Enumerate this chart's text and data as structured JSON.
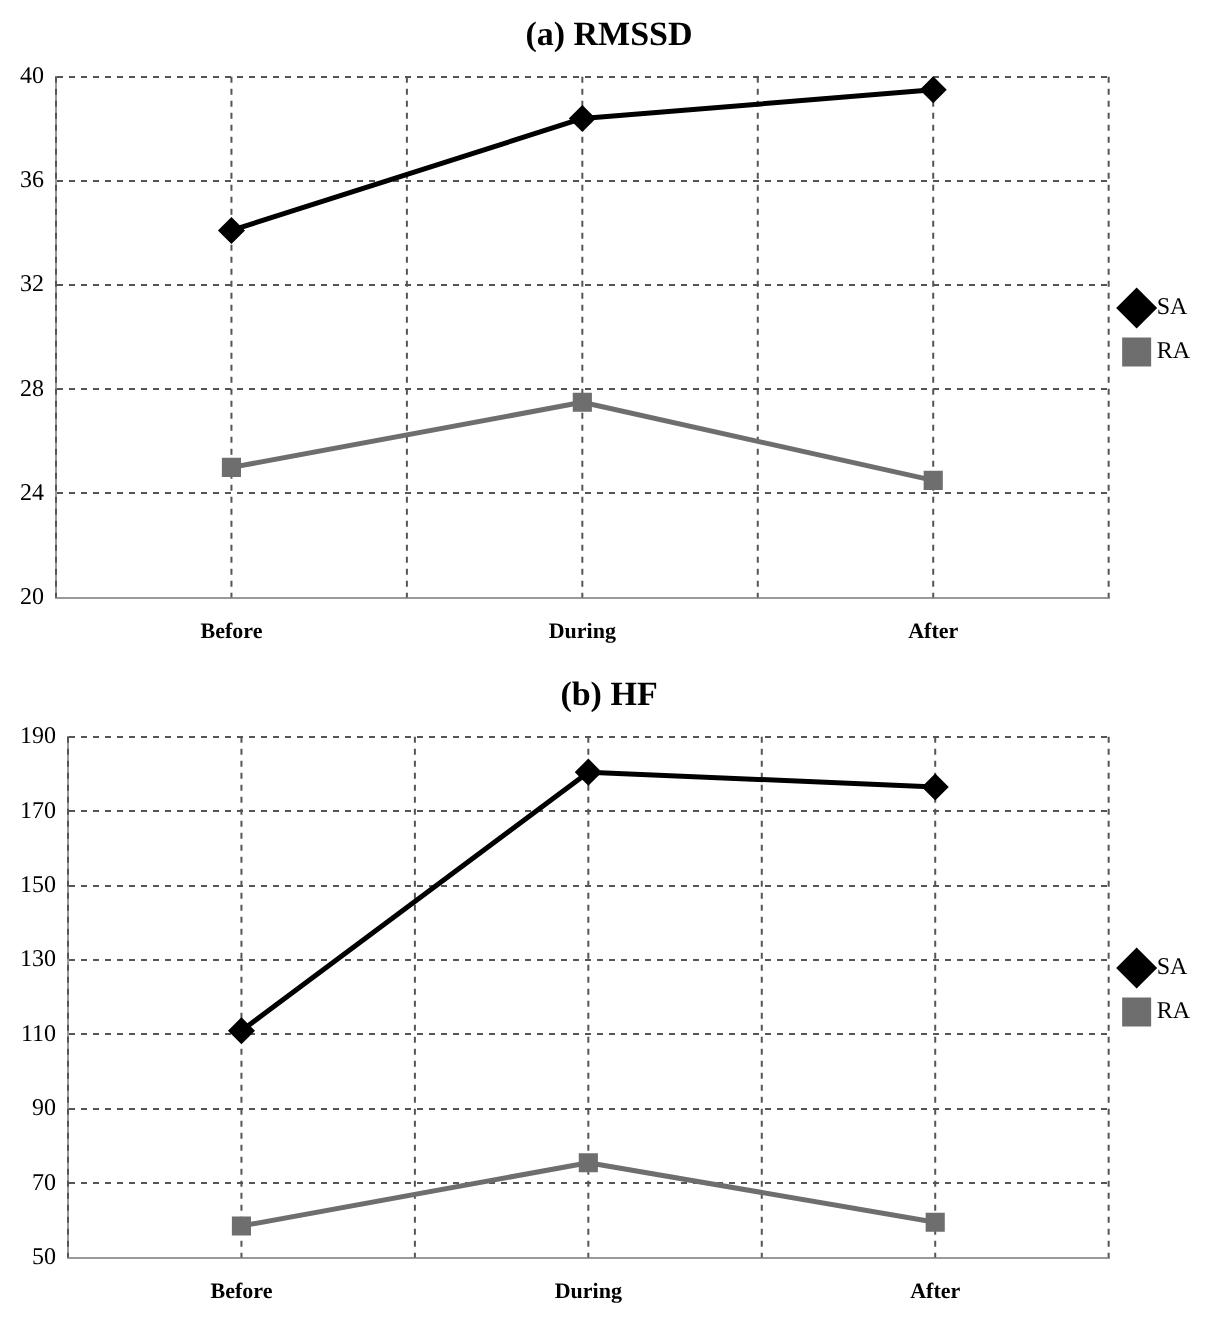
{
  "chart_data": [
    {
      "type": "line",
      "title": "(a) RMSSD",
      "categories": [
        "Before",
        "During",
        "After"
      ],
      "series": [
        {
          "name": "SA",
          "color": "#000000",
          "marker": "diamond",
          "values": [
            34.1,
            38.4,
            39.5
          ]
        },
        {
          "name": "RA",
          "color": "#6e6e6e",
          "marker": "square",
          "values": [
            25,
            27.5,
            24.5
          ]
        }
      ],
      "ylim": [
        20,
        40
      ],
      "yticks": [
        20,
        24,
        28,
        32,
        36,
        40
      ],
      "grid": true,
      "legend": "right",
      "line_style": "solid"
    },
    {
      "type": "line",
      "title": "(b) HF",
      "categories": [
        "Before",
        "During",
        "After"
      ],
      "series": [
        {
          "name": "SA",
          "color": "#000000",
          "marker": "diamond",
          "values": [
            111,
            180.5,
            176.5
          ]
        },
        {
          "name": "RA",
          "color": "#6e6e6e",
          "marker": "square",
          "values": [
            58.5,
            75.5,
            59.5
          ]
        }
      ],
      "ylim": [
        50,
        190
      ],
      "yticks": [
        50,
        70,
        90,
        110,
        130,
        150,
        170,
        190
      ],
      "grid": true,
      "legend": "right",
      "line_style": "solid"
    }
  ]
}
